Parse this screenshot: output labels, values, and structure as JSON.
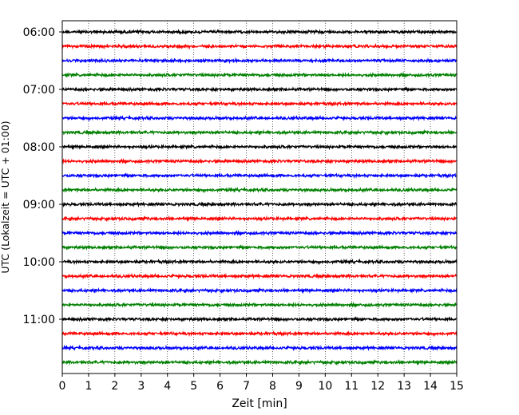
{
  "chart_data": {
    "type": "line",
    "title": "",
    "xlabel": "Zeit  [min]",
    "ylabel": "UTC (Lokalzeit = UTC + 01:00)",
    "xlim": [
      0,
      15
    ],
    "x_ticks": [
      "0",
      "1",
      "2",
      "3",
      "4",
      "5",
      "6",
      "7",
      "8",
      "9",
      "10",
      "11",
      "12",
      "13",
      "14",
      "15"
    ],
    "y_ticks": [
      "06:00",
      "07:00",
      "08:00",
      "09:00",
      "10:00",
      "11:00"
    ],
    "grid": "vertical dotted",
    "trace_interval_minutes": 15,
    "start_time": "06:00",
    "trace_colors": [
      "#000000",
      "#ff0000",
      "#0000ff",
      "#008000"
    ],
    "traces": [
      {
        "start": "06:00",
        "color": "#000000"
      },
      {
        "start": "06:15",
        "color": "#ff0000"
      },
      {
        "start": "06:30",
        "color": "#0000ff"
      },
      {
        "start": "06:45",
        "color": "#008000"
      },
      {
        "start": "07:00",
        "color": "#000000"
      },
      {
        "start": "07:15",
        "color": "#ff0000"
      },
      {
        "start": "07:30",
        "color": "#0000ff"
      },
      {
        "start": "07:45",
        "color": "#008000"
      },
      {
        "start": "08:00",
        "color": "#000000"
      },
      {
        "start": "08:15",
        "color": "#ff0000"
      },
      {
        "start": "08:30",
        "color": "#0000ff"
      },
      {
        "start": "08:45",
        "color": "#008000"
      },
      {
        "start": "09:00",
        "color": "#000000"
      },
      {
        "start": "09:15",
        "color": "#ff0000"
      },
      {
        "start": "09:30",
        "color": "#0000ff"
      },
      {
        "start": "09:45",
        "color": "#008000"
      },
      {
        "start": "10:00",
        "color": "#000000"
      },
      {
        "start": "10:15",
        "color": "#ff0000"
      },
      {
        "start": "10:30",
        "color": "#0000ff"
      },
      {
        "start": "10:45",
        "color": "#008000"
      },
      {
        "start": "11:00",
        "color": "#000000"
      },
      {
        "start": "11:15",
        "color": "#ff0000"
      },
      {
        "start": "11:30",
        "color": "#0000ff"
      },
      {
        "start": "11:45",
        "color": "#008000"
      }
    ]
  }
}
